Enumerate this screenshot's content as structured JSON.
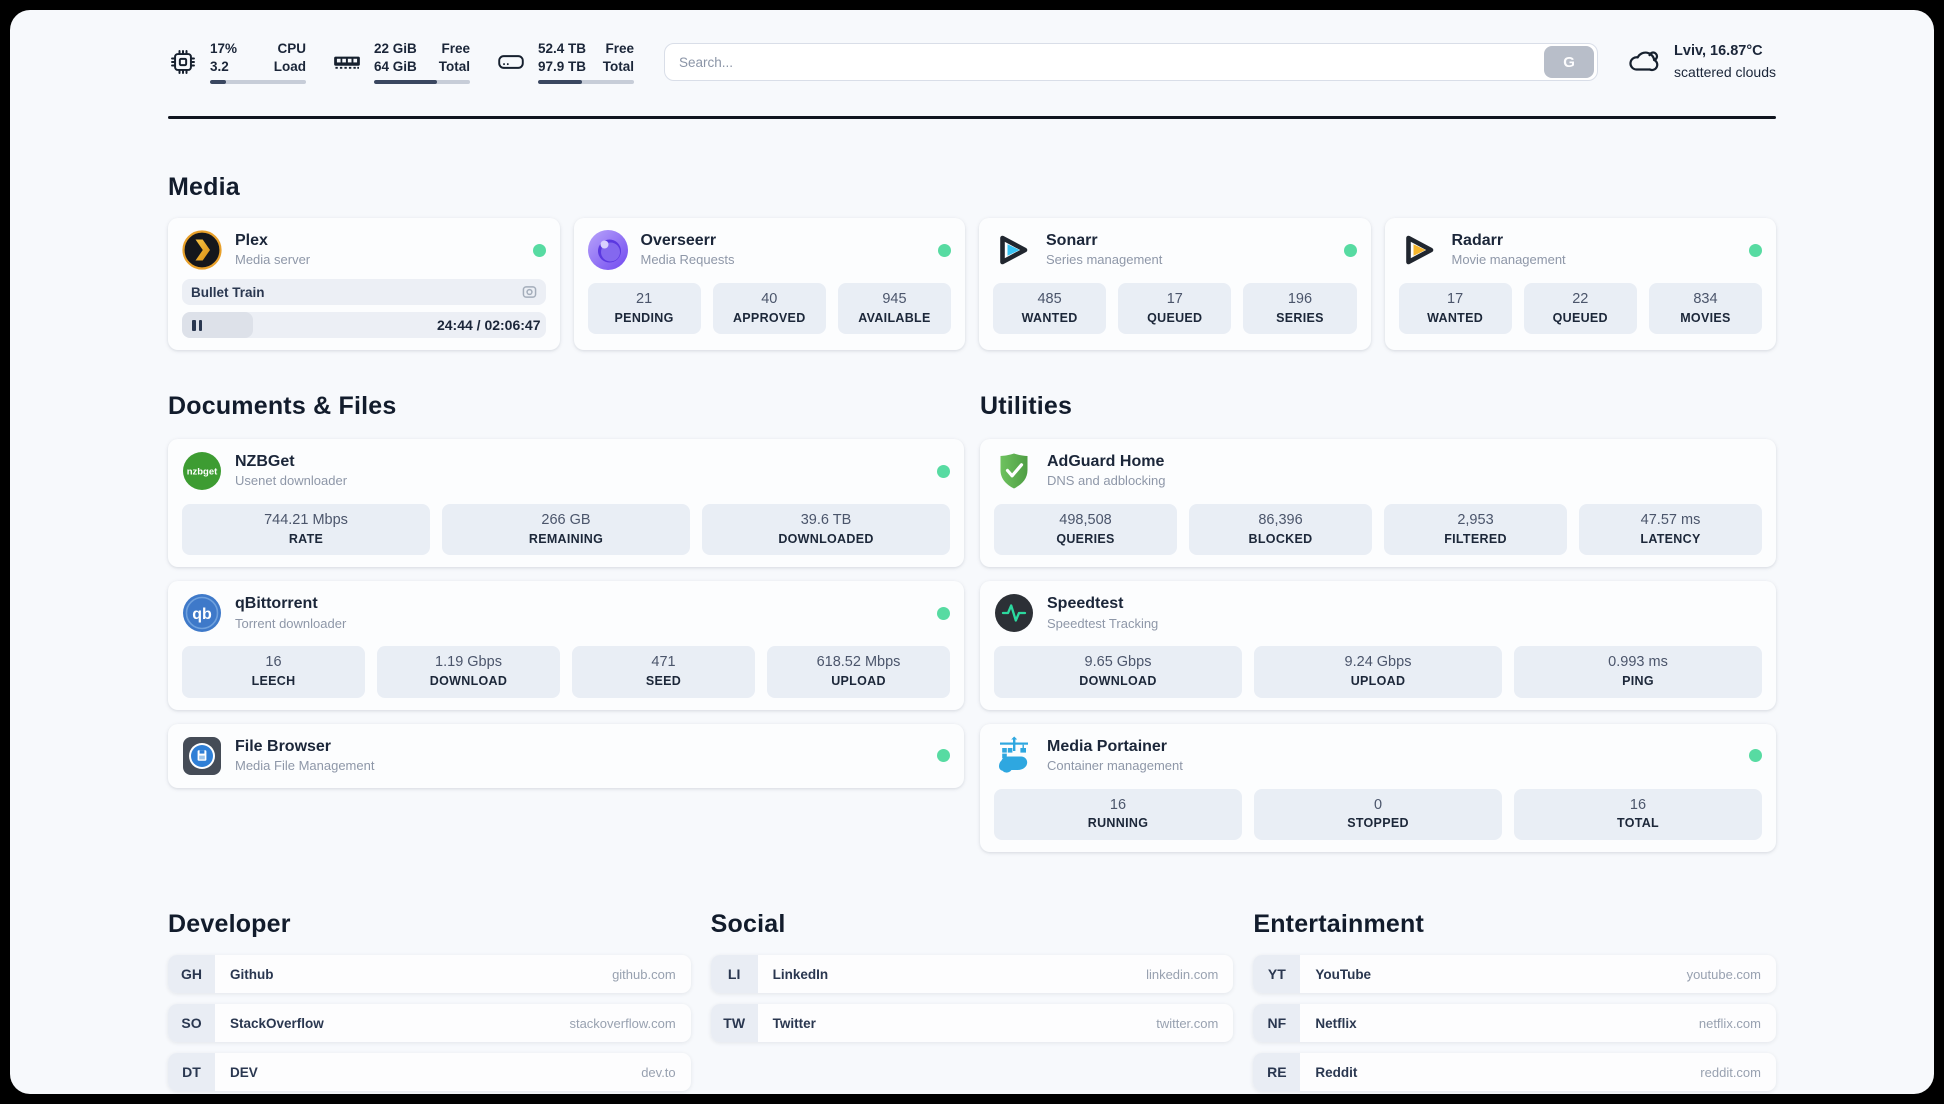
{
  "header": {
    "cpu": {
      "value": "17%",
      "load": "3.2",
      "label_top": "CPU",
      "label_bottom": "Load",
      "percent": 17
    },
    "ram": {
      "free": "22 GiB",
      "total": "64 GiB",
      "label_top": "Free",
      "label_bottom": "Total",
      "percent": 66
    },
    "disk": {
      "free": "52.4 TB",
      "total": "97.9 TB",
      "label_top": "Free",
      "label_bottom": "Total",
      "percent": 46
    },
    "search": {
      "placeholder": "Search...",
      "provider_button": "G"
    },
    "weather": {
      "location_temp": "Lviv, 16.87°C",
      "condition": "scattered clouds"
    }
  },
  "sections": {
    "media": "Media",
    "documents": "Documents & Files",
    "utilities": "Utilities",
    "developer": "Developer",
    "social": "Social",
    "entertainment": "Entertainment"
  },
  "apps": {
    "plex": {
      "name": "Plex",
      "description": "Media server",
      "online": true,
      "player": {
        "title": "Bullet Train",
        "time_display": "24:44 / 02:06:47",
        "progress_percent": 19.5,
        "state": "paused"
      }
    },
    "overseerr": {
      "name": "Overseerr",
      "description": "Media Requests",
      "online": true,
      "stats": [
        {
          "value": "21",
          "label": "PENDING"
        },
        {
          "value": "40",
          "label": "APPROVED"
        },
        {
          "value": "945",
          "label": "AVAILABLE"
        }
      ]
    },
    "sonarr": {
      "name": "Sonarr",
      "description": "Series management",
      "online": true,
      "stats": [
        {
          "value": "485",
          "label": "WANTED"
        },
        {
          "value": "17",
          "label": "QUEUED"
        },
        {
          "value": "196",
          "label": "SERIES"
        }
      ]
    },
    "radarr": {
      "name": "Radarr",
      "description": "Movie management",
      "online": true,
      "stats": [
        {
          "value": "17",
          "label": "WANTED"
        },
        {
          "value": "22",
          "label": "QUEUED"
        },
        {
          "value": "834",
          "label": "MOVIES"
        }
      ]
    },
    "nzbget": {
      "name": "NZBGet",
      "description": "Usenet downloader",
      "online": true,
      "stats": [
        {
          "value": "744.21 Mbps",
          "label": "RATE"
        },
        {
          "value": "266 GB",
          "label": "REMAINING"
        },
        {
          "value": "39.6 TB",
          "label": "DOWNLOADED"
        }
      ]
    },
    "qbittorrent": {
      "name": "qBittorrent",
      "description": "Torrent downloader",
      "online": true,
      "stats": [
        {
          "value": "16",
          "label": "LEECH"
        },
        {
          "value": "1.19 Gbps",
          "label": "DOWNLOAD"
        },
        {
          "value": "471",
          "label": "SEED"
        },
        {
          "value": "618.52 Mbps",
          "label": "UPLOAD"
        }
      ]
    },
    "filebrowser": {
      "name": "File Browser",
      "description": "Media File Management",
      "online": true
    },
    "adguard": {
      "name": "AdGuard Home",
      "description": "DNS and adblocking",
      "online": false,
      "stats": [
        {
          "value": "498,508",
          "label": "QUERIES"
        },
        {
          "value": "86,396",
          "label": "BLOCKED"
        },
        {
          "value": "2,953",
          "label": "FILTERED"
        },
        {
          "value": "47.57 ms",
          "label": "LATENCY"
        }
      ]
    },
    "speedtest": {
      "name": "Speedtest",
      "description": "Speedtest Tracking",
      "online": false,
      "stats": [
        {
          "value": "9.65 Gbps",
          "label": "DOWNLOAD"
        },
        {
          "value": "9.24 Gbps",
          "label": "UPLOAD"
        },
        {
          "value": "0.993 ms",
          "label": "PING"
        }
      ]
    },
    "portainer": {
      "name": "Media Portainer",
      "description": "Container management",
      "online": true,
      "stats": [
        {
          "value": "16",
          "label": "RUNNING"
        },
        {
          "value": "0",
          "label": "STOPPED"
        },
        {
          "value": "16",
          "label": "TOTAL"
        }
      ]
    }
  },
  "bookmarks": {
    "developer": [
      {
        "abbr": "GH",
        "name": "Github",
        "url": "github.com"
      },
      {
        "abbr": "SO",
        "name": "StackOverflow",
        "url": "stackoverflow.com"
      },
      {
        "abbr": "DT",
        "name": "DEV",
        "url": "dev.to"
      }
    ],
    "social": [
      {
        "abbr": "LI",
        "name": "LinkedIn",
        "url": "linkedin.com"
      },
      {
        "abbr": "TW",
        "name": "Twitter",
        "url": "twitter.com"
      }
    ],
    "entertainment": [
      {
        "abbr": "YT",
        "name": "YouTube",
        "url": "youtube.com"
      },
      {
        "abbr": "NF",
        "name": "Netflix",
        "url": "netflix.com"
      },
      {
        "abbr": "RE",
        "name": "Reddit",
        "url": "reddit.com"
      }
    ]
  },
  "colors": {
    "status_online": "#57dba2",
    "accent_text": "#1b2639",
    "page_frame": "#000000",
    "surface": "#f7f9fc"
  }
}
